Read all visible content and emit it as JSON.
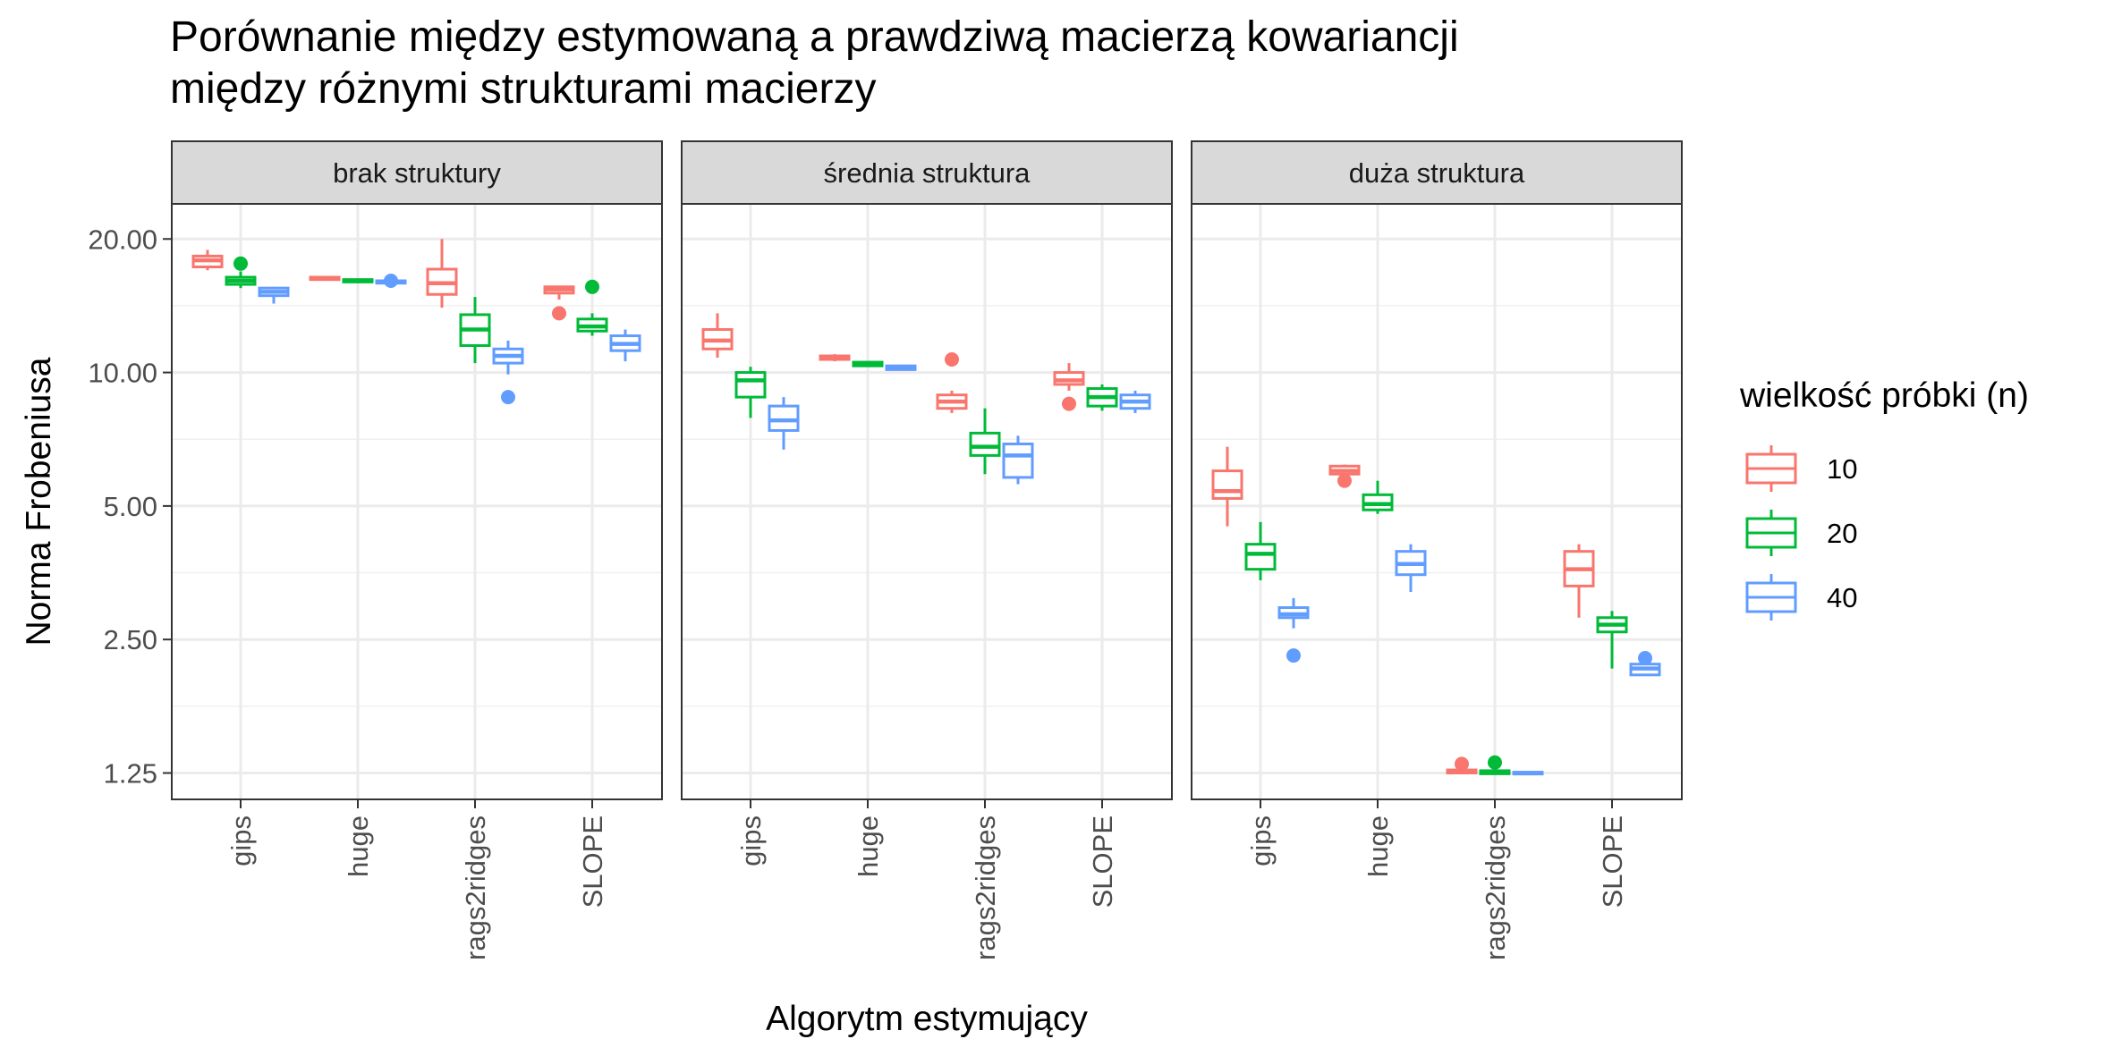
{
  "chart_data": {
    "type": "boxplot",
    "title_lines": [
      "Porównanie między estymowaną a prawdziwą macierzą kowariancji",
      "między różnymi strukturami macierzy"
    ],
    "xlabel": "Algorytm estymujący",
    "ylabel": "Norma Frobeniusa",
    "y_scale": "log",
    "ylim": [
      1.09,
      24.0
    ],
    "y_ticks": [
      {
        "value": 1.25,
        "label": "1.25"
      },
      {
        "value": 2.5,
        "label": "2.50"
      },
      {
        "value": 5.0,
        "label": "5.00"
      },
      {
        "value": 10.0,
        "label": "10.00"
      },
      {
        "value": 20.0,
        "label": "20.00"
      }
    ],
    "y_minor_ticks": [
      1.768,
      3.536,
      7.071,
      14.142
    ],
    "categories": [
      "gips",
      "huge",
      "rags2ridges",
      "SLOPE"
    ],
    "legend": {
      "title": "wielkość próbki (n)",
      "position": "right",
      "items": [
        {
          "label": "10",
          "color": "#F8766D"
        },
        {
          "label": "20",
          "color": "#00BA38"
        },
        {
          "label": "40",
          "color": "#619CFF"
        }
      ]
    },
    "grid": true,
    "panels": [
      {
        "label": "brak struktury",
        "boxes": [
          {
            "category": "gips",
            "n": "10",
            "min": 17.0,
            "q1": 17.3,
            "median": 17.9,
            "q3": 18.3,
            "max": 18.9,
            "outliers": []
          },
          {
            "category": "gips",
            "n": "20",
            "min": 15.5,
            "q1": 15.8,
            "median": 16.1,
            "q3": 16.4,
            "max": 16.9,
            "outliers": [
              17.6
            ]
          },
          {
            "category": "gips",
            "n": "40",
            "min": 14.3,
            "q1": 14.9,
            "median": 15.2,
            "q3": 15.5,
            "max": 15.6,
            "outliers": []
          },
          {
            "category": "huge",
            "n": "10",
            "min": 16.1,
            "q1": 16.2,
            "median": 16.3,
            "q3": 16.4,
            "max": 16.5,
            "outliers": []
          },
          {
            "category": "huge",
            "n": "20",
            "min": 15.9,
            "q1": 16.0,
            "median": 16.1,
            "q3": 16.2,
            "max": 16.3,
            "outliers": []
          },
          {
            "category": "huge",
            "n": "40",
            "min": 15.8,
            "q1": 15.9,
            "median": 16.0,
            "q3": 16.1,
            "max": 16.1,
            "outliers": [
              16.1
            ]
          },
          {
            "category": "rags2ridges",
            "n": "10",
            "min": 14.0,
            "q1": 15.0,
            "median": 15.9,
            "q3": 17.1,
            "max": 20.0,
            "outliers": []
          },
          {
            "category": "rags2ridges",
            "n": "20",
            "min": 10.5,
            "q1": 11.5,
            "median": 12.5,
            "q3": 13.5,
            "max": 14.8,
            "outliers": []
          },
          {
            "category": "rags2ridges",
            "n": "40",
            "min": 9.9,
            "q1": 10.5,
            "median": 10.9,
            "q3": 11.3,
            "max": 11.8,
            "outliers": [
              8.8
            ]
          },
          {
            "category": "SLOPE",
            "n": "10",
            "min": 14.6,
            "q1": 15.1,
            "median": 15.4,
            "q3": 15.6,
            "max": 15.7,
            "outliers": [
              13.6
            ]
          },
          {
            "category": "SLOPE",
            "n": "20",
            "min": 12.1,
            "q1": 12.4,
            "median": 12.7,
            "q3": 13.2,
            "max": 13.6,
            "outliers": [
              15.6
            ]
          },
          {
            "category": "SLOPE",
            "n": "40",
            "min": 10.6,
            "q1": 11.2,
            "median": 11.6,
            "q3": 12.1,
            "max": 12.5,
            "outliers": []
          }
        ]
      },
      {
        "label": "średnia struktura",
        "boxes": [
          {
            "category": "gips",
            "n": "10",
            "min": 10.8,
            "q1": 11.3,
            "median": 11.8,
            "q3": 12.5,
            "max": 13.6,
            "outliers": []
          },
          {
            "category": "gips",
            "n": "20",
            "min": 7.9,
            "q1": 8.8,
            "median": 9.6,
            "q3": 10.0,
            "max": 10.3,
            "outliers": []
          },
          {
            "category": "gips",
            "n": "40",
            "min": 6.7,
            "q1": 7.4,
            "median": 7.8,
            "q3": 8.4,
            "max": 8.8,
            "outliers": []
          },
          {
            "category": "huge",
            "n": "10",
            "min": 10.6,
            "q1": 10.7,
            "median": 10.8,
            "q3": 10.9,
            "max": 11.0,
            "outliers": []
          },
          {
            "category": "huge",
            "n": "20",
            "min": 10.3,
            "q1": 10.35,
            "median": 10.45,
            "q3": 10.55,
            "max": 10.6,
            "outliers": []
          },
          {
            "category": "huge",
            "n": "40",
            "min": 10.1,
            "q1": 10.15,
            "median": 10.25,
            "q3": 10.35,
            "max": 10.4,
            "outliers": []
          },
          {
            "category": "rags2ridges",
            "n": "10",
            "min": 8.1,
            "q1": 8.3,
            "median": 8.6,
            "q3": 8.9,
            "max": 9.1,
            "outliers": [
              10.7
            ]
          },
          {
            "category": "rags2ridges",
            "n": "20",
            "min": 5.9,
            "q1": 6.5,
            "median": 6.8,
            "q3": 7.3,
            "max": 8.3,
            "outliers": []
          },
          {
            "category": "rags2ridges",
            "n": "40",
            "min": 5.6,
            "q1": 5.8,
            "median": 6.5,
            "q3": 6.9,
            "max": 7.2,
            "outliers": []
          },
          {
            "category": "SLOPE",
            "n": "10",
            "min": 9.1,
            "q1": 9.4,
            "median": 9.6,
            "q3": 10.0,
            "max": 10.5,
            "outliers": [
              8.5
            ]
          },
          {
            "category": "SLOPE",
            "n": "20",
            "min": 8.2,
            "q1": 8.4,
            "median": 8.8,
            "q3": 9.2,
            "max": 9.4,
            "outliers": []
          },
          {
            "category": "SLOPE",
            "n": "40",
            "min": 8.1,
            "q1": 8.3,
            "median": 8.6,
            "q3": 8.9,
            "max": 9.1,
            "outliers": []
          }
        ]
      },
      {
        "label": "duża struktura",
        "boxes": [
          {
            "category": "gips",
            "n": "10",
            "min": 4.5,
            "q1": 5.2,
            "median": 5.4,
            "q3": 6.0,
            "max": 6.8,
            "outliers": []
          },
          {
            "category": "gips",
            "n": "20",
            "min": 3.4,
            "q1": 3.6,
            "median": 3.9,
            "q3": 4.1,
            "max": 4.6,
            "outliers": []
          },
          {
            "category": "gips",
            "n": "40",
            "min": 2.65,
            "q1": 2.8,
            "median": 2.85,
            "q3": 2.95,
            "max": 3.1,
            "outliers": [
              2.3
            ]
          },
          {
            "category": "huge",
            "n": "10",
            "min": 5.8,
            "q1": 5.9,
            "median": 6.0,
            "q3": 6.15,
            "max": 6.2,
            "outliers": [
              5.7
            ]
          },
          {
            "category": "huge",
            "n": "20",
            "min": 4.8,
            "q1": 4.9,
            "median": 5.05,
            "q3": 5.3,
            "max": 5.7,
            "outliers": []
          },
          {
            "category": "huge",
            "n": "40",
            "min": 3.2,
            "q1": 3.5,
            "median": 3.7,
            "q3": 3.95,
            "max": 4.1,
            "outliers": []
          },
          {
            "category": "rags2ridges",
            "n": "10",
            "min": 1.245,
            "q1": 1.25,
            "median": 1.26,
            "q3": 1.27,
            "max": 1.28,
            "outliers": [
              1.31
            ]
          },
          {
            "category": "rags2ridges",
            "n": "20",
            "min": 1.24,
            "q1": 1.245,
            "median": 1.255,
            "q3": 1.265,
            "max": 1.27,
            "outliers": [
              1.32
            ]
          },
          {
            "category": "rags2ridges",
            "n": "40",
            "min": 1.24,
            "q1": 1.245,
            "median": 1.25,
            "q3": 1.255,
            "max": 1.26,
            "outliers": []
          },
          {
            "category": "SLOPE",
            "n": "10",
            "min": 2.8,
            "q1": 3.3,
            "median": 3.6,
            "q3": 3.95,
            "max": 4.1,
            "outliers": []
          },
          {
            "category": "SLOPE",
            "n": "20",
            "min": 2.15,
            "q1": 2.6,
            "median": 2.7,
            "q3": 2.8,
            "max": 2.9,
            "outliers": []
          },
          {
            "category": "SLOPE",
            "n": "40",
            "min": 2.08,
            "q1": 2.08,
            "median": 2.15,
            "q3": 2.2,
            "max": 2.25,
            "outliers": [
              2.27
            ]
          }
        ]
      }
    ]
  }
}
